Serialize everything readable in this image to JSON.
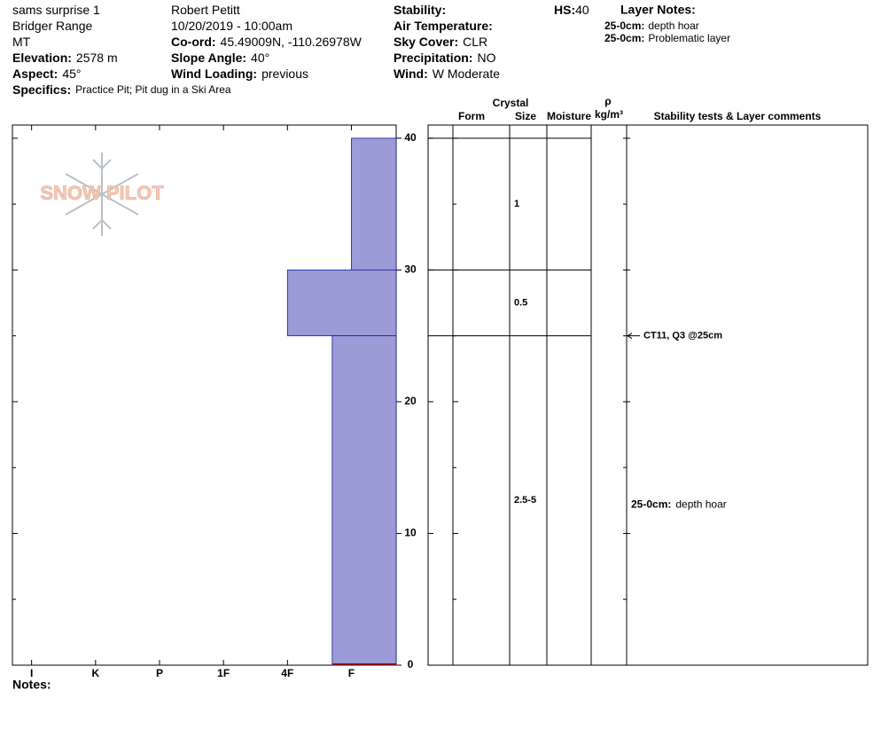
{
  "header": {
    "col1": [
      "sams surprise 1",
      "Bridger Range",
      "MT",
      {
        "label": "Elevation:",
        "value": "2578 m"
      },
      {
        "label": "Aspect:",
        "value": "45°"
      },
      {
        "label": "Specifics:",
        "value": "Practice Pit; Pit dug in a Ski Area"
      }
    ],
    "col2": [
      "Robert Petitt",
      "10/20/2019 - 10:00am",
      {
        "label": "Co-ord:",
        "value": "45.49009N, -110.26978W"
      },
      {
        "label": "Slope Angle:",
        "value": "40°"
      },
      {
        "label": "Wind Loading:",
        "value": "previous"
      }
    ],
    "col3": [
      {
        "label": "Stability:"
      },
      {
        "label": "Air Temperature:"
      },
      {
        "label": "Sky Cover:",
        "value": "CLR"
      },
      {
        "label": "Precipitation:",
        "value": "NO"
      },
      {
        "label": "Wind:",
        "value": "W Moderate"
      }
    ],
    "hs": {
      "label": "HS:",
      "value": "40"
    },
    "layer_notes_title": "Layer Notes:",
    "layer_notes": [
      {
        "label": "25-0cm:",
        "value": "depth hoar"
      },
      {
        "label": "25-0cm:",
        "value": "Problematic layer"
      }
    ],
    "logo": "SNOW PILOT",
    "notes": "Notes:"
  },
  "chart_data": {
    "type": "profile",
    "color": "#9b9bd7",
    "edge_color": "#1a1aa0",
    "ground_color": "#8b0000",
    "xlim": [
      0.3,
      6.3
    ],
    "xticks": [
      {
        "value": 6,
        "label": "I"
      },
      {
        "value": 5,
        "label": "K"
      },
      {
        "value": 4,
        "label": "P"
      },
      {
        "value": 3,
        "label": "1F"
      },
      {
        "value": 2,
        "label": "4F"
      },
      {
        "value": 1,
        "label": "F"
      }
    ],
    "ylim": [
      0,
      41
    ],
    "yticks": [
      0,
      10,
      20,
      30,
      40
    ],
    "yticks_minor": [
      5,
      15,
      25,
      35
    ],
    "layers": [
      {
        "top": 40,
        "bottom": 30,
        "hardness": 1,
        "size": "1"
      },
      {
        "top": 30,
        "bottom": 25,
        "hardness": 2,
        "size": "0.5"
      },
      {
        "top": 25,
        "bottom": 0,
        "hardness": 1.3,
        "size": "2.5-5"
      }
    ],
    "columns": {
      "crystal": "Crystal",
      "form": "Form",
      "size": "Size",
      "moisture": "Moisture",
      "rho": "ρ",
      "density": "kg/m³",
      "comments": "Stability tests & Layer comments"
    },
    "tests": [
      {
        "depth": 25,
        "label": "CT11, Q3 @25cm"
      }
    ],
    "comments": [
      {
        "top": 25,
        "bottom": 0,
        "label": "25-0cm:",
        "text": "depth hoar"
      }
    ]
  }
}
